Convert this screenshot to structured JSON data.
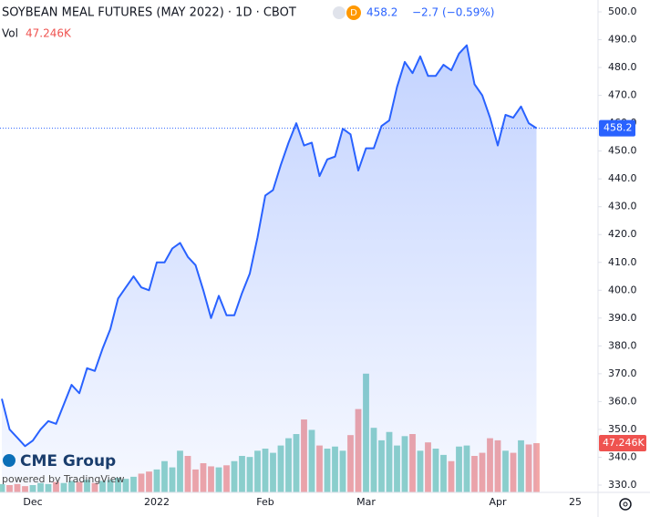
{
  "chart_data": {
    "type": "area",
    "title": "SOYBEAN MEAL FUTURES (MAY 2022) · 1D · CBOT",
    "badge": "D",
    "change_label": "−2.7 (−0.59%)",
    "watermark": [
      "CME Group",
      "powered by TradingView"
    ],
    "categories": [
      null,
      null,
      null,
      null,
      "Dec",
      null,
      null,
      null,
      null,
      null,
      null,
      null,
      null,
      null,
      null,
      null,
      null,
      null,
      null,
      null,
      "2022",
      null,
      null,
      null,
      null,
      null,
      null,
      null,
      null,
      null,
      null,
      null,
      null,
      null,
      "Feb",
      null,
      null,
      null,
      null,
      null,
      null,
      null,
      null,
      null,
      null,
      null,
      null,
      "Mar",
      null,
      null,
      null,
      null,
      null,
      null,
      null,
      null,
      null,
      null,
      null,
      null,
      null,
      null,
      null,
      null,
      "Apr",
      null,
      null,
      null,
      null,
      null,
      null,
      null,
      null,
      null,
      "25"
    ],
    "series": [
      {
        "name": "SOYBEAN MEAL FUTURES (MAY 2022)",
        "color": "#2962ff",
        "values": [
          361,
          350,
          347,
          344,
          346,
          350,
          353,
          352,
          359,
          366,
          363,
          372,
          371,
          379,
          386,
          397,
          401,
          405,
          401,
          400,
          410,
          410,
          415,
          417,
          412,
          409,
          400,
          390,
          398,
          391,
          391,
          399,
          406,
          419,
          434,
          436,
          445,
          453,
          460,
          452,
          453,
          441,
          447,
          448,
          458,
          456,
          443,
          451,
          451,
          459,
          461,
          473,
          482,
          478,
          484,
          477,
          477,
          481,
          479,
          485,
          488,
          474,
          470,
          462,
          452,
          463,
          462,
          466,
          460,
          458.2,
          null,
          null,
          null,
          null,
          null
        ]
      },
      {
        "name": "Vol",
        "axis": "volume",
        "up_color": "#8fd3ca",
        "down_color": "#f3a6a6",
        "last_label": "47.246K",
        "values": [
          8,
          7,
          8,
          6,
          7,
          9,
          8,
          10,
          9,
          11,
          10,
          12,
          9,
          11,
          12,
          14,
          13,
          15,
          18,
          20,
          22,
          30,
          24,
          40,
          35,
          22,
          28,
          25,
          24,
          26,
          30,
          35,
          34,
          40,
          42,
          38,
          45,
          52,
          56,
          70,
          60,
          45,
          42,
          44,
          40,
          55,
          80,
          114,
          62,
          50,
          58,
          45,
          54,
          56,
          40,
          48,
          42,
          36,
          30,
          44,
          45,
          35,
          38,
          52,
          50,
          40,
          38,
          50,
          46,
          47.246,
          null,
          null,
          null,
          null,
          null
        ]
      }
    ],
    "ylim": [
      330,
      500
    ],
    "yticks": [
      {
        "value": 330,
        "label": "330.0"
      },
      {
        "value": 340,
        "label": "340.0"
      },
      {
        "value": 350,
        "label": "350.0"
      },
      {
        "value": 360,
        "label": "360.0"
      },
      {
        "value": 370,
        "label": "370.0"
      },
      {
        "value": 380,
        "label": "380.0"
      },
      {
        "value": 390,
        "label": "390.0"
      },
      {
        "value": 400,
        "label": "400.0"
      },
      {
        "value": 410,
        "label": "410.0"
      },
      {
        "value": 420,
        "label": "420.0"
      },
      {
        "value": 430,
        "label": "430.0"
      },
      {
        "value": 440,
        "label": "440.0"
      },
      {
        "value": 450,
        "label": "450.0"
      },
      {
        "value": 460,
        "label": "460.0"
      },
      {
        "value": 470,
        "label": "470.0"
      },
      {
        "value": 480,
        "label": "480.0"
      },
      {
        "value": 490,
        "label": "490.0"
      },
      {
        "value": 500,
        "label": "500.0"
      }
    ],
    "volume_ylim": [
      0,
      450
    ],
    "grid": false
  }
}
